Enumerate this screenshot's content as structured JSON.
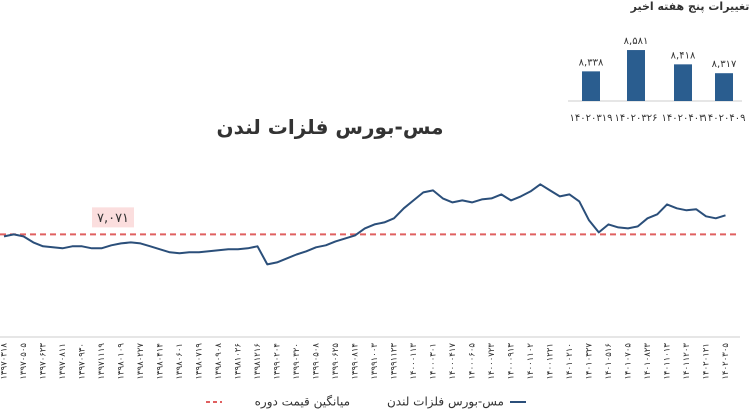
{
  "chart_data": [
    {
      "type": "line",
      "title": "مس-بورس فلزات لندن",
      "categories": [
        "۱۳۹۷۰۳۱۸",
        null,
        "۱۳۹۷۰۵۰۵",
        null,
        "۱۳۹۷۰۶۲۳",
        null,
        "۱۳۹۷۰۸۱۱",
        null,
        "۱۳۹۷۰۹۳۰",
        null,
        "۱۳۹۷۱۱۱۹",
        null,
        "۱۳۹۸۰۱۰۹",
        null,
        "۱۳۹۸۰۲۲۷",
        null,
        "۱۳۹۸۰۴۱۴",
        null,
        "۱۳۹۸۰۶۰۱",
        null,
        "۱۳۹۸۰۷۱۹",
        null,
        "۱۳۹۸۰۹۰۸",
        null,
        "۱۳۹۸۱۰۲۶",
        null,
        "۱۳۹۸۱۲۱۶",
        null,
        "۱۳۹۹۰۲۰۴",
        null,
        "۱۳۹۹۰۳۲۰",
        null,
        "۱۳۹۹۰۵۰۸",
        null,
        "۱۳۹۹۰۶۲۵",
        null,
        "۱۳۹۹۰۸۱۴",
        null,
        "۱۳۹۹۱۰۰۳",
        null,
        "۱۳۹۹۱۱۲۳",
        null,
        "۱۴۰۰۰۱۱۳",
        null,
        "۱۴۰۰۰۳۰۱",
        null,
        "۱۴۰۰۰۴۱۷",
        null,
        "۱۴۰۰۰۶۰۵",
        null,
        "۱۴۰۰۰۷۲۳",
        null,
        "۱۴۰۰۰۹۱۳",
        null,
        "۱۴۰۰۱۱۰۲",
        null,
        "۱۴۰۰۱۲۲۱",
        null,
        "۱۴۰۱۰۲۱۰",
        null,
        "۱۴۰۱۰۳۲۷",
        null,
        "۱۴۰۱۰۵۱۶",
        null,
        "۱۴۰۱۰۷۰۵",
        null,
        "۱۴۰۱۰۸۲۳",
        null,
        "۱۴۰۱۱۰۱۳",
        null,
        "۱۴۰۱۱۲۰۳",
        null,
        "۱۴۰۲۰۱۲۱",
        null,
        "۱۴۰۲۰۳۰۵"
      ],
      "series": [
        {
          "name": "مس-بورس فلزات لندن",
          "color": "#2b4f7a",
          "values": [
            6930,
            7070,
            6930,
            6510,
            6230,
            6160,
            6090,
            6230,
            6230,
            6090,
            6090,
            6300,
            6440,
            6510,
            6440,
            6230,
            6020,
            5810,
            5740,
            5810,
            5810,
            5880,
            5950,
            6020,
            6020,
            6090,
            6230,
            4960,
            5100,
            5380,
            5660,
            5880,
            6160,
            6300,
            6580,
            6790,
            7000,
            7490,
            7770,
            7910,
            8200,
            8900,
            9460,
            10020,
            10160,
            9600,
            9320,
            9460,
            9320,
            9530,
            9600,
            9880,
            9460,
            9740,
            10090,
            10590,
            10160,
            9740,
            9880,
            9390,
            8060,
            7210,
            7770,
            7560,
            7490,
            7630,
            8200,
            8480,
            9180,
            8900,
            8760,
            8830,
            8340,
            8200,
            8410
          ]
        }
      ],
      "reference_line": {
        "name": "میانگین قیمت دوره",
        "value": 7071,
        "value_label": "۷,۰۷۱",
        "color": "#e06060"
      },
      "ylim": [
        0,
        13000
      ]
    },
    {
      "type": "bar",
      "title": "تغییرات پنج هفته اخیر",
      "categories": [
        "۱۴۰۲۰۳۱۹",
        "۱۴۰۲۰۳۲۶",
        "۱۴۰۲۰۴۰۳",
        "۱۴۰۲۰۴۰۹"
      ],
      "values": [
        8338,
        8581,
        8418,
        8317
      ],
      "value_labels": [
        "۸,۳۳۸",
        "۸,۵۸۱",
        "۸,۴۱۸",
        "۸,۳۱۷"
      ],
      "color": "#2a5d8f",
      "ylim": [
        8000,
        8650
      ]
    }
  ]
}
